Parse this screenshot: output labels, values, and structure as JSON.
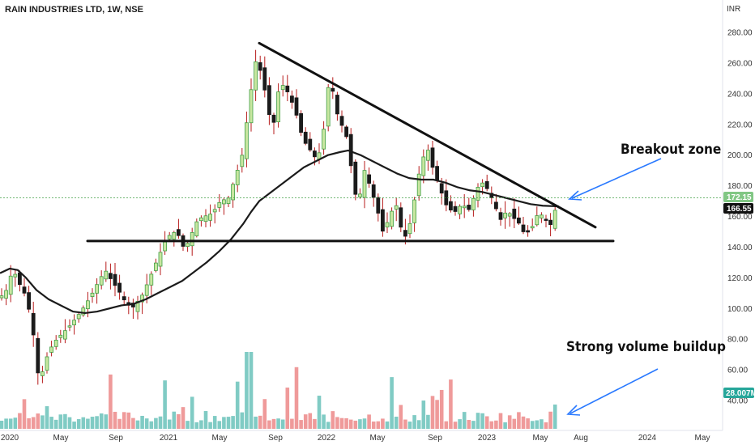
{
  "header": {
    "title": "RAIN INDUSTRIES LTD, 1W, NSE",
    "currency": "INR"
  },
  "colors": {
    "up": "#43a047",
    "up_fill": "#c8e6a0",
    "down": "#1b1b1b",
    "wick": "#b71c1c",
    "ma": "#1b1b1b",
    "vol_up": "#80cbc4",
    "vol_down": "#ef9a9a",
    "arrow": "#2979ff",
    "price_badge": "#81c784",
    "volume_badge": "#26a69a"
  },
  "annotations": {
    "breakout": "Breakout zone",
    "volume": "Strong volume buildup"
  },
  "badges": {
    "last_price": "172.15",
    "ma_value": "166.55",
    "volume": "28.007M"
  },
  "chart_data": {
    "type": "candlestick",
    "title": "RAIN INDUSTRIES LTD, 1W, NSE",
    "ylabel": "INR",
    "ylim": [
      30,
      290
    ],
    "y_ticks": [
      "280.00",
      "260.00",
      "240.00",
      "220.00",
      "200.00",
      "180.00",
      "160.00",
      "140.00",
      "120.00",
      "100.00",
      "80.00",
      "60.00",
      "40.00"
    ],
    "x_ticks": [
      "2020",
      "May",
      "Sep",
      "2021",
      "May",
      "Sep",
      "2022",
      "May",
      "Sep",
      "2023",
      "May",
      "Aug",
      "2024",
      "May"
    ],
    "last_price": 172.15,
    "ma_last": 166.55,
    "volume_last": "28.007M",
    "close_path": [
      [
        0,
        107
      ],
      [
        8,
        112
      ],
      [
        16,
        126
      ],
      [
        22,
        118
      ],
      [
        30,
        110
      ],
      [
        38,
        95
      ],
      [
        44,
        72
      ],
      [
        48,
        52
      ],
      [
        52,
        58
      ],
      [
        60,
        72
      ],
      [
        70,
        80
      ],
      [
        85,
        88
      ],
      [
        100,
        98
      ],
      [
        112,
        108
      ],
      [
        122,
        118
      ],
      [
        130,
        125
      ],
      [
        138,
        118
      ],
      [
        146,
        112
      ],
      [
        155,
        104
      ],
      [
        163,
        100
      ],
      [
        175,
        108
      ],
      [
        185,
        120
      ],
      [
        195,
        133
      ],
      [
        205,
        145
      ],
      [
        213,
        150
      ],
      [
        220,
        148
      ],
      [
        228,
        138
      ],
      [
        236,
        148
      ],
      [
        244,
        158
      ],
      [
        252,
        160
      ],
      [
        262,
        162
      ],
      [
        272,
        170
      ],
      [
        282,
        172
      ],
      [
        292,
        188
      ],
      [
        300,
        202
      ],
      [
        306,
        228
      ],
      [
        312,
        250
      ],
      [
        318,
        268
      ],
      [
        322,
        252
      ],
      [
        330,
        236
      ],
      [
        336,
        212
      ],
      [
        342,
        240
      ],
      [
        350,
        246
      ],
      [
        358,
        238
      ],
      [
        366,
        226
      ],
      [
        374,
        210
      ],
      [
        382,
        204
      ],
      [
        392,
        196
      ],
      [
        400,
        218
      ],
      [
        406,
        248
      ],
      [
        412,
        240
      ],
      [
        418,
        222
      ],
      [
        424,
        218
      ],
      [
        430,
        208
      ],
      [
        436,
        180
      ],
      [
        442,
        168
      ],
      [
        450,
        190
      ],
      [
        458,
        178
      ],
      [
        466,
        164
      ],
      [
        472,
        150
      ],
      [
        480,
        158
      ],
      [
        488,
        170
      ],
      [
        496,
        150
      ],
      [
        502,
        146
      ],
      [
        508,
        160
      ],
      [
        514,
        178
      ],
      [
        520,
        196
      ],
      [
        528,
        204
      ],
      [
        534,
        192
      ],
      [
        542,
        180
      ],
      [
        550,
        168
      ],
      [
        560,
        162
      ],
      [
        570,
        168
      ],
      [
        580,
        164
      ],
      [
        588,
        178
      ],
      [
        596,
        182
      ],
      [
        604,
        176
      ],
      [
        610,
        168
      ],
      [
        618,
        158
      ],
      [
        626,
        164
      ],
      [
        632,
        160
      ],
      [
        640,
        156
      ],
      [
        648,
        148
      ],
      [
        656,
        152
      ],
      [
        664,
        162
      ],
      [
        672,
        160
      ],
      [
        678,
        152
      ],
      [
        684,
        162
      ],
      [
        690,
        172.15
      ]
    ],
    "ma_path": [
      [
        0,
        123
      ],
      [
        12,
        126
      ],
      [
        22,
        125
      ],
      [
        32,
        120
      ],
      [
        45,
        112
      ],
      [
        60,
        106
      ],
      [
        75,
        102
      ],
      [
        90,
        98
      ],
      [
        105,
        97
      ],
      [
        120,
        98
      ],
      [
        135,
        100
      ],
      [
        150,
        102
      ],
      [
        165,
        103
      ],
      [
        180,
        106
      ],
      [
        195,
        110
      ],
      [
        210,
        114
      ],
      [
        225,
        118
      ],
      [
        240,
        124
      ],
      [
        255,
        130
      ],
      [
        270,
        137
      ],
      [
        285,
        145
      ],
      [
        300,
        155
      ],
      [
        310,
        163
      ],
      [
        320,
        170
      ],
      [
        330,
        174
      ],
      [
        345,
        180
      ],
      [
        360,
        186
      ],
      [
        375,
        192
      ],
      [
        390,
        196
      ],
      [
        405,
        200
      ],
      [
        420,
        202
      ],
      [
        430,
        203
      ],
      [
        445,
        200
      ],
      [
        460,
        196
      ],
      [
        475,
        192
      ],
      [
        490,
        188
      ],
      [
        505,
        185
      ],
      [
        520,
        184
      ],
      [
        535,
        184
      ],
      [
        550,
        182
      ],
      [
        565,
        179
      ],
      [
        580,
        177
      ],
      [
        595,
        176
      ],
      [
        610,
        174
      ],
      [
        625,
        172
      ],
      [
        640,
        170
      ],
      [
        655,
        168
      ],
      [
        670,
        167
      ],
      [
        690,
        166.55
      ]
    ],
    "lines": [
      {
        "name": "resistance",
        "from": {
          "x": 320,
          "y": 273
        },
        "to": {
          "x": 735,
          "y": 153
        }
      },
      {
        "name": "support",
        "from": {
          "x": 108,
          "y": 144
        },
        "to": {
          "x": 757,
          "y": 144
        }
      }
    ]
  }
}
